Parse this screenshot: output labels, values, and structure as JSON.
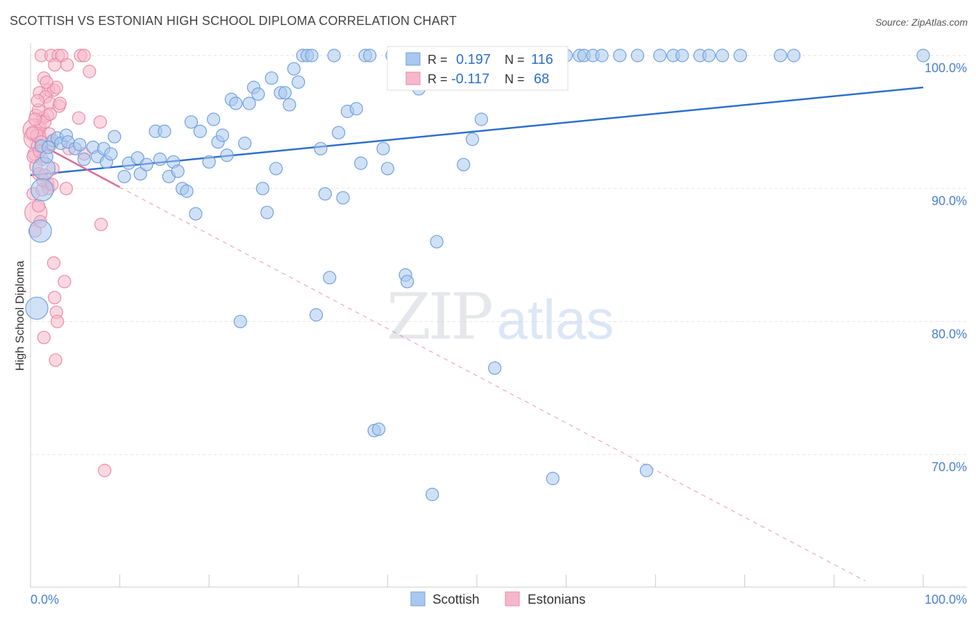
{
  "header": {
    "title": "SCOTTISH VS ESTONIAN HIGH SCHOOL DIPLOMA CORRELATION CHART",
    "source": "Source: ZipAtlas.com"
  },
  "watermark": {
    "zip": "ZIP",
    "atlas": "atlas"
  },
  "colors": {
    "blue_fill": "#a9c8ef",
    "blue_stroke": "#6f9fdc",
    "blue_line": "#2c6ecb",
    "pink_fill": "#f5b8cb",
    "pink_stroke": "#e98aa8",
    "pink_line": "#e06a93",
    "tick_label": "#4a7fcf",
    "grid": "#e2e2e2"
  },
  "legend": {
    "rows": [
      {
        "r_label": "R =",
        "r_value": "0.197",
        "n_label": "N =",
        "n_value": "116"
      },
      {
        "r_label": "R =",
        "r_value": "-0.117",
        "n_label": "N =",
        "n_value": "68"
      }
    ]
  },
  "bottom_legend": {
    "scottish": "Scottish",
    "estonians": "Estonians"
  },
  "chart_data": {
    "type": "scatter",
    "title": "SCOTTISH VS ESTONIAN HIGH SCHOOL DIPLOMA CORRELATION CHART",
    "xlabel": "",
    "ylabel": "High School Diploma",
    "xlim": [
      0,
      100
    ],
    "ylim": [
      60.5,
      101.5
    ],
    "x_tick_labels": [
      "0.0%",
      "100.0%"
    ],
    "y_ticks": [
      70,
      80,
      90,
      100
    ],
    "y_tick_labels": [
      "70.0%",
      "80.0%",
      "90.0%",
      "100.0%"
    ],
    "grid": true,
    "legend_position": "top-center",
    "series": [
      {
        "name": "Scottish",
        "R": 0.197,
        "N": 116,
        "trend": {
          "x": [
            0,
            100
          ],
          "y": [
            91.0,
            97.6
          ],
          "style": "solid"
        },
        "points": [
          [
            1.2,
            93.2
          ],
          [
            1.5,
            91.5
          ],
          [
            1.3,
            89.9
          ],
          [
            1.1,
            86.8
          ],
          [
            0.7,
            81.0
          ],
          [
            2.5,
            93.6
          ],
          [
            3.0,
            93.8
          ],
          [
            3.4,
            93.4
          ],
          [
            4.0,
            94.0
          ],
          [
            4.2,
            93.5
          ],
          [
            5.0,
            93.0
          ],
          [
            5.5,
            93.3
          ],
          [
            6.0,
            92.2
          ],
          [
            7.0,
            93.1
          ],
          [
            7.5,
            92.4
          ],
          [
            8.2,
            93.0
          ],
          [
            8.5,
            92.0
          ],
          [
            9.0,
            92.6
          ],
          [
            9.4,
            93.9
          ],
          [
            10.5,
            90.9
          ],
          [
            11.0,
            91.9
          ],
          [
            12.0,
            92.3
          ],
          [
            12.3,
            91.1
          ],
          [
            14.0,
            94.3
          ],
          [
            15.0,
            94.3
          ],
          [
            13.0,
            91.8
          ],
          [
            14.5,
            92.2
          ],
          [
            15.5,
            90.9
          ],
          [
            16.0,
            92.0
          ],
          [
            16.5,
            91.3
          ],
          [
            17.0,
            90.0
          ],
          [
            17.5,
            89.8
          ],
          [
            18.0,
            95.0
          ],
          [
            19.0,
            94.3
          ],
          [
            18.5,
            88.1
          ],
          [
            20.0,
            92.0
          ],
          [
            20.5,
            95.2
          ],
          [
            21.0,
            93.5
          ],
          [
            21.5,
            94.0
          ],
          [
            22.0,
            92.5
          ],
          [
            22.5,
            96.7
          ],
          [
            23.0,
            96.4
          ],
          [
            23.5,
            80.0
          ],
          [
            24.0,
            93.4
          ],
          [
            24.5,
            96.4
          ],
          [
            25.0,
            97.6
          ],
          [
            25.5,
            97.1
          ],
          [
            26.0,
            90.0
          ],
          [
            26.5,
            88.2
          ],
          [
            27.0,
            98.3
          ],
          [
            27.5,
            91.5
          ],
          [
            28.0,
            97.2
          ],
          [
            28.5,
            97.2
          ],
          [
            29.0,
            96.3
          ],
          [
            29.5,
            99.0
          ],
          [
            30.0,
            98.0
          ],
          [
            30.5,
            100.0
          ],
          [
            31.0,
            100.0
          ],
          [
            31.5,
            100.0
          ],
          [
            32.0,
            80.5
          ],
          [
            32.5,
            93.0
          ],
          [
            33.0,
            89.6
          ],
          [
            33.5,
            83.3
          ],
          [
            34.0,
            100.0
          ],
          [
            34.5,
            94.2
          ],
          [
            35.0,
            89.3
          ],
          [
            35.5,
            95.8
          ],
          [
            36.5,
            96.0
          ],
          [
            37.0,
            91.9
          ],
          [
            37.5,
            100.0
          ],
          [
            38.0,
            100.0
          ],
          [
            38.5,
            71.8
          ],
          [
            39.0,
            71.9
          ],
          [
            39.5,
            93.0
          ],
          [
            40.0,
            91.5
          ],
          [
            40.5,
            100.0
          ],
          [
            42.0,
            83.5
          ],
          [
            42.2,
            83.0
          ],
          [
            42.5,
            100.0
          ],
          [
            43.0,
            100.0
          ],
          [
            43.5,
            97.5
          ],
          [
            44.0,
            98.5
          ],
          [
            45.0,
            67.0
          ],
          [
            45.5,
            86.0
          ],
          [
            46.0,
            100.0
          ],
          [
            47.0,
            100.0
          ],
          [
            48.0,
            98.0
          ],
          [
            48.5,
            91.8
          ],
          [
            49.5,
            93.7
          ],
          [
            50.5,
            95.2
          ],
          [
            52.0,
            76.5
          ],
          [
            53.0,
            100.0
          ],
          [
            55.0,
            100.0
          ],
          [
            57.0,
            100.0
          ],
          [
            58.0,
            100.0
          ],
          [
            58.5,
            68.2
          ],
          [
            60.0,
            100.0
          ],
          [
            61.5,
            100.0
          ],
          [
            62.0,
            100.0
          ],
          [
            63.0,
            100.0
          ],
          [
            64.0,
            100.0
          ],
          [
            66.0,
            100.0
          ],
          [
            68.0,
            100.0
          ],
          [
            69.0,
            68.8
          ],
          [
            70.5,
            100.0
          ],
          [
            72.0,
            100.0
          ],
          [
            73.0,
            100.0
          ],
          [
            75.0,
            100.0
          ],
          [
            76.0,
            100.0
          ],
          [
            77.5,
            100.0
          ],
          [
            79.5,
            100.0
          ],
          [
            84.0,
            100.0
          ],
          [
            85.5,
            100.0
          ],
          [
            100.0,
            100.0
          ],
          [
            1.8,
            92.4
          ],
          [
            2.0,
            93.1
          ]
        ],
        "large_points": [
          [
            1.3,
            89.9
          ],
          [
            1.1,
            86.8
          ],
          [
            0.7,
            81.0
          ],
          [
            1.5,
            91.5
          ]
        ]
      },
      {
        "name": "Estonians",
        "R": -0.117,
        "N": 68,
        "trend": {
          "x": [
            0,
            10
          ],
          "y": [
            93.7,
            90.1
          ],
          "style": "solid"
        },
        "trend_extended": {
          "x": [
            10,
            93.5
          ],
          "y": [
            90.1,
            60.5
          ],
          "style": "dashed"
        },
        "points": [
          [
            1.2,
            100.0
          ],
          [
            2.3,
            100.0
          ],
          [
            3.1,
            100.0
          ],
          [
            3.5,
            100.0
          ],
          [
            5.6,
            100.0
          ],
          [
            6.0,
            100.0
          ],
          [
            2.7,
            99.3
          ],
          [
            4.1,
            99.3
          ],
          [
            6.6,
            98.8
          ],
          [
            1.5,
            98.3
          ],
          [
            2.0,
            97.4
          ],
          [
            2.6,
            97.4
          ],
          [
            1.0,
            97.2
          ],
          [
            1.7,
            96.9
          ],
          [
            2.2,
            96.4
          ],
          [
            3.2,
            96.2
          ],
          [
            0.6,
            95.5
          ],
          [
            1.4,
            95.3
          ],
          [
            1.9,
            95.5
          ],
          [
            5.4,
            95.3
          ],
          [
            7.8,
            95.0
          ],
          [
            0.4,
            94.4
          ],
          [
            1.1,
            94.6
          ],
          [
            2.1,
            94.1
          ],
          [
            0.5,
            93.8
          ],
          [
            0.8,
            93.2
          ],
          [
            2.4,
            93.4
          ],
          [
            4.3,
            93.0
          ],
          [
            0.4,
            92.6
          ],
          [
            1.3,
            92.2
          ],
          [
            6.0,
            92.6
          ],
          [
            0.6,
            91.7
          ],
          [
            2.5,
            91.5
          ],
          [
            1.9,
            90.4
          ],
          [
            2.0,
            90.0
          ],
          [
            4.0,
            90.0
          ],
          [
            0.3,
            89.6
          ],
          [
            1.3,
            89.9
          ],
          [
            0.6,
            88.2
          ],
          [
            1.1,
            87.5
          ],
          [
            7.9,
            87.3
          ],
          [
            0.5,
            86.8
          ],
          [
            2.6,
            84.4
          ],
          [
            3.8,
            83.0
          ],
          [
            2.7,
            81.8
          ],
          [
            2.9,
            80.7
          ],
          [
            3.0,
            80.0
          ],
          [
            1.5,
            78.8
          ],
          [
            2.8,
            77.1
          ],
          [
            8.3,
            68.8
          ],
          [
            0.9,
            95.9
          ],
          [
            1.6,
            95.0
          ],
          [
            0.7,
            94.0
          ],
          [
            2.9,
            97.6
          ],
          [
            1.2,
            93.5
          ],
          [
            0.3,
            92.4
          ],
          [
            0.9,
            91.1
          ],
          [
            1.4,
            90.6
          ],
          [
            0.5,
            95.2
          ],
          [
            2.2,
            95.6
          ],
          [
            1.8,
            98.0
          ],
          [
            0.8,
            96.6
          ],
          [
            3.3,
            96.4
          ],
          [
            1.0,
            92.8
          ],
          [
            0.2,
            94.2
          ],
          [
            1.6,
            91.0
          ],
          [
            2.4,
            90.3
          ],
          [
            0.9,
            88.7
          ]
        ],
        "large_points": [
          [
            0.6,
            88.2
          ],
          [
            0.4,
            94.4
          ],
          [
            0.5,
            93.8
          ]
        ]
      }
    ]
  }
}
